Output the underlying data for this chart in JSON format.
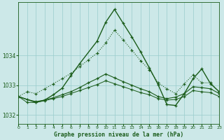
{
  "title": "Graphe pression niveau de la mer (hPa)",
  "bg_color": "#cce8e8",
  "grid_color": "#99cccc",
  "line_color": "#1a5c1a",
  "xlim": [
    0,
    23
  ],
  "ylim": [
    1031.7,
    1035.8
  ],
  "yticks": [
    1032,
    1033,
    1034
  ],
  "xticks": [
    0,
    1,
    2,
    3,
    4,
    5,
    6,
    7,
    8,
    9,
    10,
    11,
    12,
    13,
    14,
    15,
    16,
    17,
    18,
    19,
    20,
    21,
    22,
    23
  ],
  "s_dotted_x": [
    0,
    1,
    2,
    3,
    4,
    5,
    6,
    7,
    8,
    9,
    10,
    11,
    12,
    13,
    14,
    15,
    16,
    17,
    18,
    19,
    20,
    21,
    22,
    23
  ],
  "s_dotted_y": [
    1032.62,
    1032.78,
    1032.72,
    1032.88,
    1033.05,
    1033.22,
    1033.4,
    1033.62,
    1033.85,
    1034.08,
    1034.42,
    1034.85,
    1034.52,
    1034.18,
    1033.82,
    1033.52,
    1033.08,
    1032.88,
    1032.72,
    1033.05,
    1033.35,
    1033.08,
    1033.08,
    1032.78
  ],
  "s_peak_x": [
    0,
    2,
    3,
    4,
    5,
    6,
    7,
    9,
    10,
    11,
    12,
    13,
    14,
    15,
    16,
    17,
    18,
    19,
    20,
    21,
    22,
    23
  ],
  "s_peak_y": [
    1032.62,
    1032.42,
    1032.5,
    1032.68,
    1032.9,
    1033.32,
    1033.72,
    1034.48,
    1035.12,
    1035.55,
    1035.08,
    1034.62,
    1034.12,
    1033.58,
    1033.02,
    1032.35,
    1032.32,
    1032.72,
    1033.22,
    1033.55,
    1033.05,
    1032.78
  ],
  "s_flat1_x": [
    0,
    1,
    2,
    3,
    4,
    5,
    6,
    7,
    8,
    9,
    10,
    11,
    12,
    13,
    14,
    15,
    16,
    17,
    18,
    19,
    20,
    21,
    22,
    23
  ],
  "s_flat1_y": [
    1032.62,
    1032.52,
    1032.45,
    1032.5,
    1032.58,
    1032.68,
    1032.78,
    1032.92,
    1033.08,
    1033.22,
    1033.38,
    1033.25,
    1033.12,
    1033.0,
    1032.88,
    1032.78,
    1032.62,
    1032.55,
    1032.6,
    1032.72,
    1032.95,
    1032.92,
    1032.88,
    1032.72
  ],
  "s_flat2_x": [
    0,
    1,
    2,
    3,
    4,
    5,
    6,
    7,
    8,
    9,
    10,
    11,
    12,
    13,
    14,
    15,
    16,
    17,
    18,
    19,
    20,
    21,
    22,
    23
  ],
  "s_flat2_y": [
    1032.62,
    1032.42,
    1032.42,
    1032.48,
    1032.55,
    1032.62,
    1032.72,
    1032.82,
    1032.92,
    1033.02,
    1033.15,
    1033.05,
    1032.95,
    1032.85,
    1032.75,
    1032.68,
    1032.55,
    1032.5,
    1032.52,
    1032.62,
    1032.82,
    1032.78,
    1032.75,
    1032.62
  ]
}
